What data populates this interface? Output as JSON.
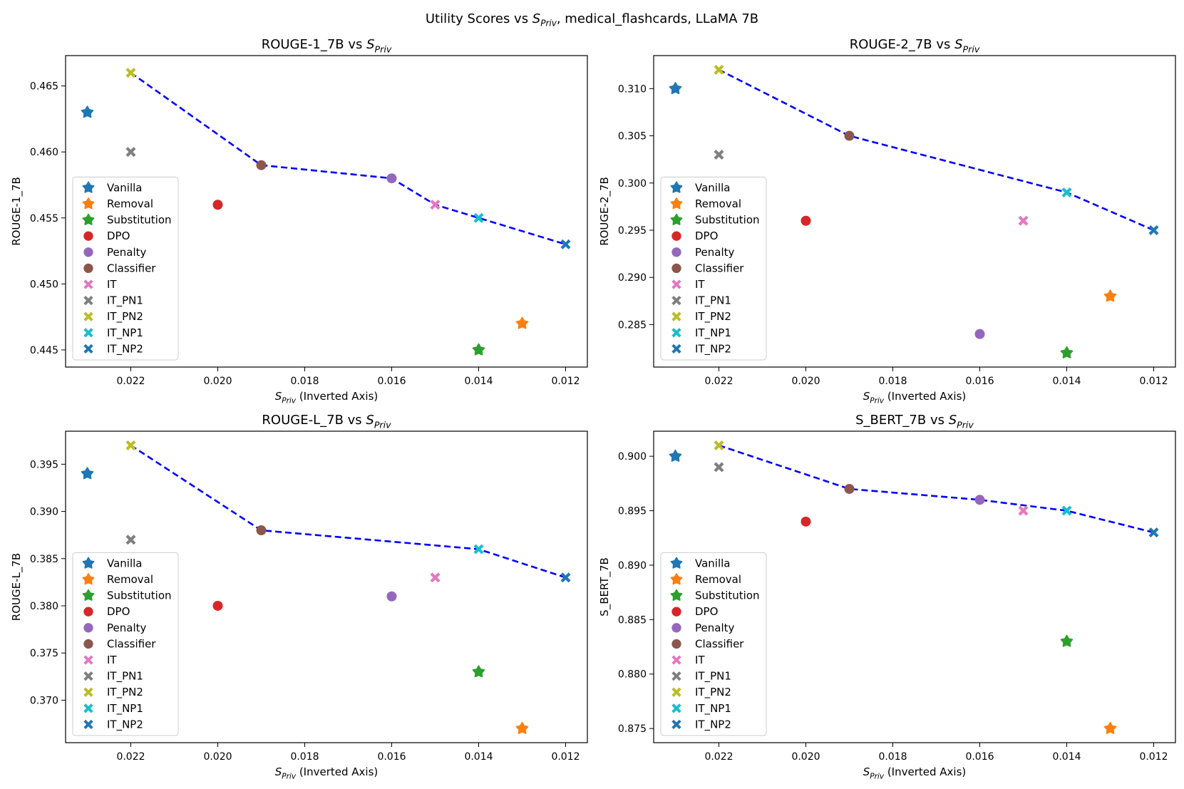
{
  "figure": {
    "suptitle_pre": "Utility Scores vs ",
    "suptitle_post": ", medical_flashcards, LLaMA 7B"
  },
  "s_symbol": "S",
  "s_sub": "Priv",
  "xlabel_suffix": " (Inverted Axis)",
  "legend_entries": [
    {
      "label": "Vanilla",
      "marker": "star",
      "color": "#1f77b4"
    },
    {
      "label": "Removal",
      "marker": "star",
      "color": "#ff7f0e"
    },
    {
      "label": "Substitution",
      "marker": "star",
      "color": "#2ca02c"
    },
    {
      "label": "DPO",
      "marker": "circle",
      "color": "#d62728"
    },
    {
      "label": "Penalty",
      "marker": "circle",
      "color": "#9467bd"
    },
    {
      "label": "Classifier",
      "marker": "circle",
      "color": "#8c564b"
    },
    {
      "label": "IT",
      "marker": "x",
      "color": "#e377c2"
    },
    {
      "label": "IT_PN1",
      "marker": "x",
      "color": "#7f7f7f"
    },
    {
      "label": "IT_PN2",
      "marker": "x",
      "color": "#bcbd22"
    },
    {
      "label": "IT_NP1",
      "marker": "x",
      "color": "#17becf"
    },
    {
      "label": "IT_NP2",
      "marker": "x",
      "color": "#1f77b4"
    }
  ],
  "pareto_color": "#0000ff",
  "chart_data": [
    {
      "type": "scatter",
      "title_pre": "ROUGE-1_7B vs ",
      "ylabel": "ROUGE-1_7B",
      "x_inverted": true,
      "xlim": [
        0.0235,
        0.0115
      ],
      "ylim": [
        0.4437,
        0.4673
      ],
      "xticks": [
        "0.022",
        "0.020",
        "0.018",
        "0.016",
        "0.014",
        "0.012"
      ],
      "yticks": [
        "0.445",
        "0.450",
        "0.455",
        "0.460",
        "0.465"
      ],
      "legend_position": "lower-left",
      "points": [
        {
          "name": "Vanilla",
          "x": 0.023,
          "y": 0.463
        },
        {
          "name": "Removal",
          "x": 0.013,
          "y": 0.447
        },
        {
          "name": "Substitution",
          "x": 0.014,
          "y": 0.445
        },
        {
          "name": "DPO",
          "x": 0.02,
          "y": 0.456
        },
        {
          "name": "Penalty",
          "x": 0.016,
          "y": 0.458
        },
        {
          "name": "Classifier",
          "x": 0.019,
          "y": 0.459
        },
        {
          "name": "IT",
          "x": 0.015,
          "y": 0.456
        },
        {
          "name": "IT_PN1",
          "x": 0.022,
          "y": 0.46
        },
        {
          "name": "IT_PN2",
          "x": 0.022,
          "y": 0.466
        },
        {
          "name": "IT_NP1",
          "x": 0.014,
          "y": 0.455
        },
        {
          "name": "IT_NP2",
          "x": 0.012,
          "y": 0.453
        }
      ],
      "pareto": [
        [
          0.022,
          0.466
        ],
        [
          0.019,
          0.459
        ],
        [
          0.016,
          0.458
        ],
        [
          0.015,
          0.456
        ],
        [
          0.014,
          0.455
        ],
        [
          0.012,
          0.453
        ]
      ]
    },
    {
      "type": "scatter",
      "title_pre": "ROUGE-2_7B vs ",
      "ylabel": "ROUGE-2_7B",
      "x_inverted": true,
      "xlim": [
        0.0235,
        0.0115
      ],
      "ylim": [
        0.2805,
        0.3135
      ],
      "xticks": [
        "0.022",
        "0.020",
        "0.018",
        "0.016",
        "0.014",
        "0.012"
      ],
      "yticks": [
        "0.285",
        "0.290",
        "0.295",
        "0.300",
        "0.305",
        "0.310"
      ],
      "legend_position": "lower-left",
      "points": [
        {
          "name": "Vanilla",
          "x": 0.023,
          "y": 0.31
        },
        {
          "name": "Removal",
          "x": 0.013,
          "y": 0.288
        },
        {
          "name": "Substitution",
          "x": 0.014,
          "y": 0.282
        },
        {
          "name": "DPO",
          "x": 0.02,
          "y": 0.296
        },
        {
          "name": "Penalty",
          "x": 0.016,
          "y": 0.284
        },
        {
          "name": "Classifier",
          "x": 0.019,
          "y": 0.305
        },
        {
          "name": "IT",
          "x": 0.015,
          "y": 0.296
        },
        {
          "name": "IT_PN1",
          "x": 0.022,
          "y": 0.303
        },
        {
          "name": "IT_PN2",
          "x": 0.022,
          "y": 0.312
        },
        {
          "name": "IT_NP1",
          "x": 0.014,
          "y": 0.299
        },
        {
          "name": "IT_NP2",
          "x": 0.012,
          "y": 0.295
        }
      ],
      "pareto": [
        [
          0.022,
          0.312
        ],
        [
          0.019,
          0.305
        ],
        [
          0.014,
          0.299
        ],
        [
          0.012,
          0.295
        ]
      ]
    },
    {
      "type": "scatter",
      "title_pre": "ROUGE-L_7B vs ",
      "ylabel": "ROUGE-L_7B",
      "x_inverted": true,
      "xlim": [
        0.0235,
        0.0115
      ],
      "ylim": [
        0.3655,
        0.3985
      ],
      "xticks": [
        "0.022",
        "0.020",
        "0.018",
        "0.016",
        "0.014",
        "0.012"
      ],
      "yticks": [
        "0.370",
        "0.375",
        "0.380",
        "0.385",
        "0.390",
        "0.395"
      ],
      "legend_position": "lower-left",
      "points": [
        {
          "name": "Vanilla",
          "x": 0.023,
          "y": 0.394
        },
        {
          "name": "Removal",
          "x": 0.013,
          "y": 0.367
        },
        {
          "name": "Substitution",
          "x": 0.014,
          "y": 0.373
        },
        {
          "name": "DPO",
          "x": 0.02,
          "y": 0.38
        },
        {
          "name": "Penalty",
          "x": 0.016,
          "y": 0.381
        },
        {
          "name": "Classifier",
          "x": 0.019,
          "y": 0.388
        },
        {
          "name": "IT",
          "x": 0.015,
          "y": 0.383
        },
        {
          "name": "IT_PN1",
          "x": 0.022,
          "y": 0.387
        },
        {
          "name": "IT_PN2",
          "x": 0.022,
          "y": 0.397
        },
        {
          "name": "IT_NP1",
          "x": 0.014,
          "y": 0.386
        },
        {
          "name": "IT_NP2",
          "x": 0.012,
          "y": 0.383
        }
      ],
      "pareto": [
        [
          0.022,
          0.397
        ],
        [
          0.019,
          0.388
        ],
        [
          0.014,
          0.386
        ],
        [
          0.012,
          0.383
        ]
      ]
    },
    {
      "type": "scatter",
      "title_pre": "S_BERT_7B vs ",
      "ylabel": "S_BERT_7B",
      "x_inverted": true,
      "xlim": [
        0.0235,
        0.0115
      ],
      "ylim": [
        0.8737,
        0.9023
      ],
      "xticks": [
        "0.022",
        "0.020",
        "0.018",
        "0.016",
        "0.014",
        "0.012"
      ],
      "yticks": [
        "0.875",
        "0.880",
        "0.885",
        "0.890",
        "0.895",
        "0.900"
      ],
      "legend_position": "lower-left",
      "points": [
        {
          "name": "Vanilla",
          "x": 0.023,
          "y": 0.9
        },
        {
          "name": "Removal",
          "x": 0.013,
          "y": 0.875
        },
        {
          "name": "Substitution",
          "x": 0.014,
          "y": 0.883
        },
        {
          "name": "DPO",
          "x": 0.02,
          "y": 0.894
        },
        {
          "name": "Penalty",
          "x": 0.016,
          "y": 0.896
        },
        {
          "name": "Classifier",
          "x": 0.019,
          "y": 0.897
        },
        {
          "name": "IT",
          "x": 0.015,
          "y": 0.895
        },
        {
          "name": "IT_PN1",
          "x": 0.022,
          "y": 0.899
        },
        {
          "name": "IT_PN2",
          "x": 0.022,
          "y": 0.901
        },
        {
          "name": "IT_NP1",
          "x": 0.014,
          "y": 0.895
        },
        {
          "name": "IT_NP2",
          "x": 0.012,
          "y": 0.893
        }
      ],
      "pareto": [
        [
          0.022,
          0.901
        ],
        [
          0.019,
          0.897
        ],
        [
          0.016,
          0.896
        ],
        [
          0.014,
          0.895
        ],
        [
          0.012,
          0.893
        ]
      ]
    }
  ]
}
